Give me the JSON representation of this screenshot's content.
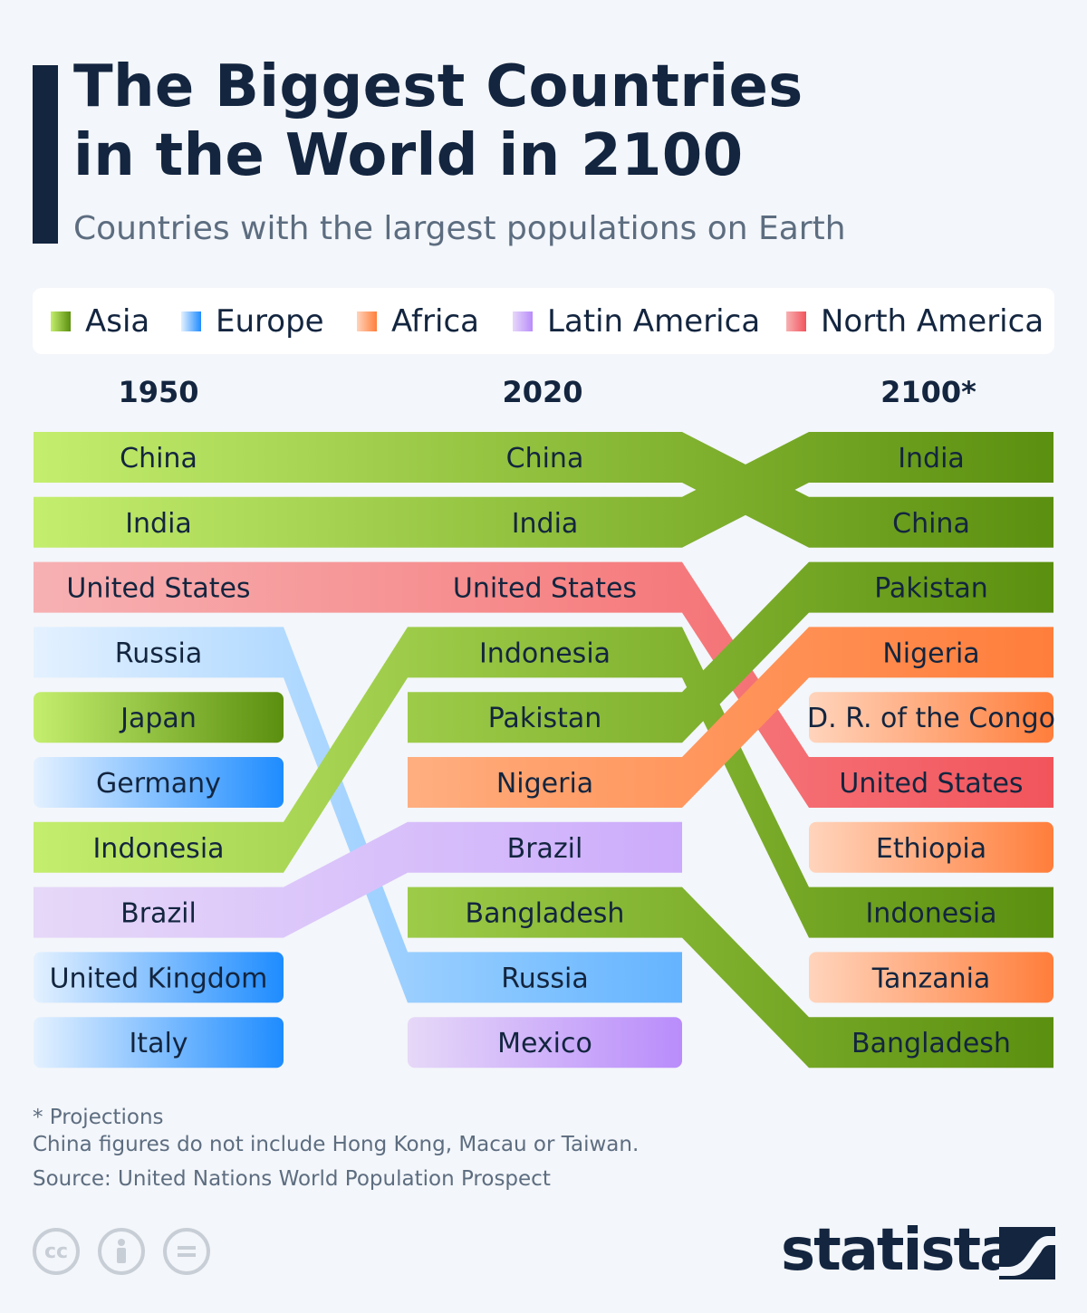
{
  "title_lines": [
    "The Biggest Countries",
    "in the World in 2100"
  ],
  "subtitle": "Countries with the largest populations on Earth",
  "legend": [
    {
      "label": "Asia",
      "color": "#6a9e1c"
    },
    {
      "label": "Europe",
      "color": "#1e90ff"
    },
    {
      "label": "Africa",
      "color": "#ff8c4a"
    },
    {
      "label": "Latin America",
      "color": "#c89cff"
    },
    {
      "label": "North America",
      "color": "#f06468"
    }
  ],
  "chart_data": {
    "type": "bump",
    "title": "The Biggest Countries in the World in 2100",
    "years": [
      "1950",
      "2020",
      "2100*"
    ],
    "rankings": {
      "1950": [
        "China",
        "India",
        "United States",
        "Russia",
        "Japan",
        "Germany",
        "Indonesia",
        "Brazil",
        "United Kingdom",
        "Italy"
      ],
      "2020": [
        "China",
        "India",
        "United States",
        "Indonesia",
        "Pakistan",
        "Nigeria",
        "Brazil",
        "Bangladesh",
        "Russia",
        "Mexico"
      ],
      "2100*": [
        "India",
        "China",
        "Pakistan",
        "Nigeria",
        "D. R. of the Congo",
        "United States",
        "Ethiopia",
        "Indonesia",
        "Tanzania",
        "Bangladesh"
      ]
    },
    "regions": {
      "China": "Asia",
      "India": "Asia",
      "United States": "North America",
      "Russia": "Europe",
      "Japan": "Asia",
      "Germany": "Europe",
      "Indonesia": "Asia",
      "Brazil": "Latin America",
      "United Kingdom": "Europe",
      "Italy": "Europe",
      "Pakistan": "Asia",
      "Nigeria": "Africa",
      "Bangladesh": "Asia",
      "Mexico": "Latin America",
      "D. R. of the Congo": "Africa",
      "Ethiopia": "Africa",
      "Tanzania": "Africa"
    },
    "region_colors": {
      "Asia": [
        "#c4ee6e",
        "#8fbf3c",
        "#5b8f0f"
      ],
      "Europe": [
        "#e4f1ff",
        "#7fc2ff",
        "#1e8cff"
      ],
      "Africa": [
        "#ffd4bc",
        "#ffa16c",
        "#ff7e3b"
      ],
      "Latin America": [
        "#e6d8f8",
        "#d2b6fb",
        "#b98cfb"
      ],
      "North America": [
        "#f7b1b3",
        "#f68788",
        "#f2545c"
      ]
    }
  },
  "footnotes": {
    "projections": "* Projections",
    "china_note": "China figures do not include Hong Kong, Macau or Taiwan.",
    "source": "Source: United Nations World Population Prospect"
  },
  "license_icons": [
    "cc-icon",
    "attribution-icon",
    "no-derivatives-icon"
  ],
  "brand": "statista"
}
